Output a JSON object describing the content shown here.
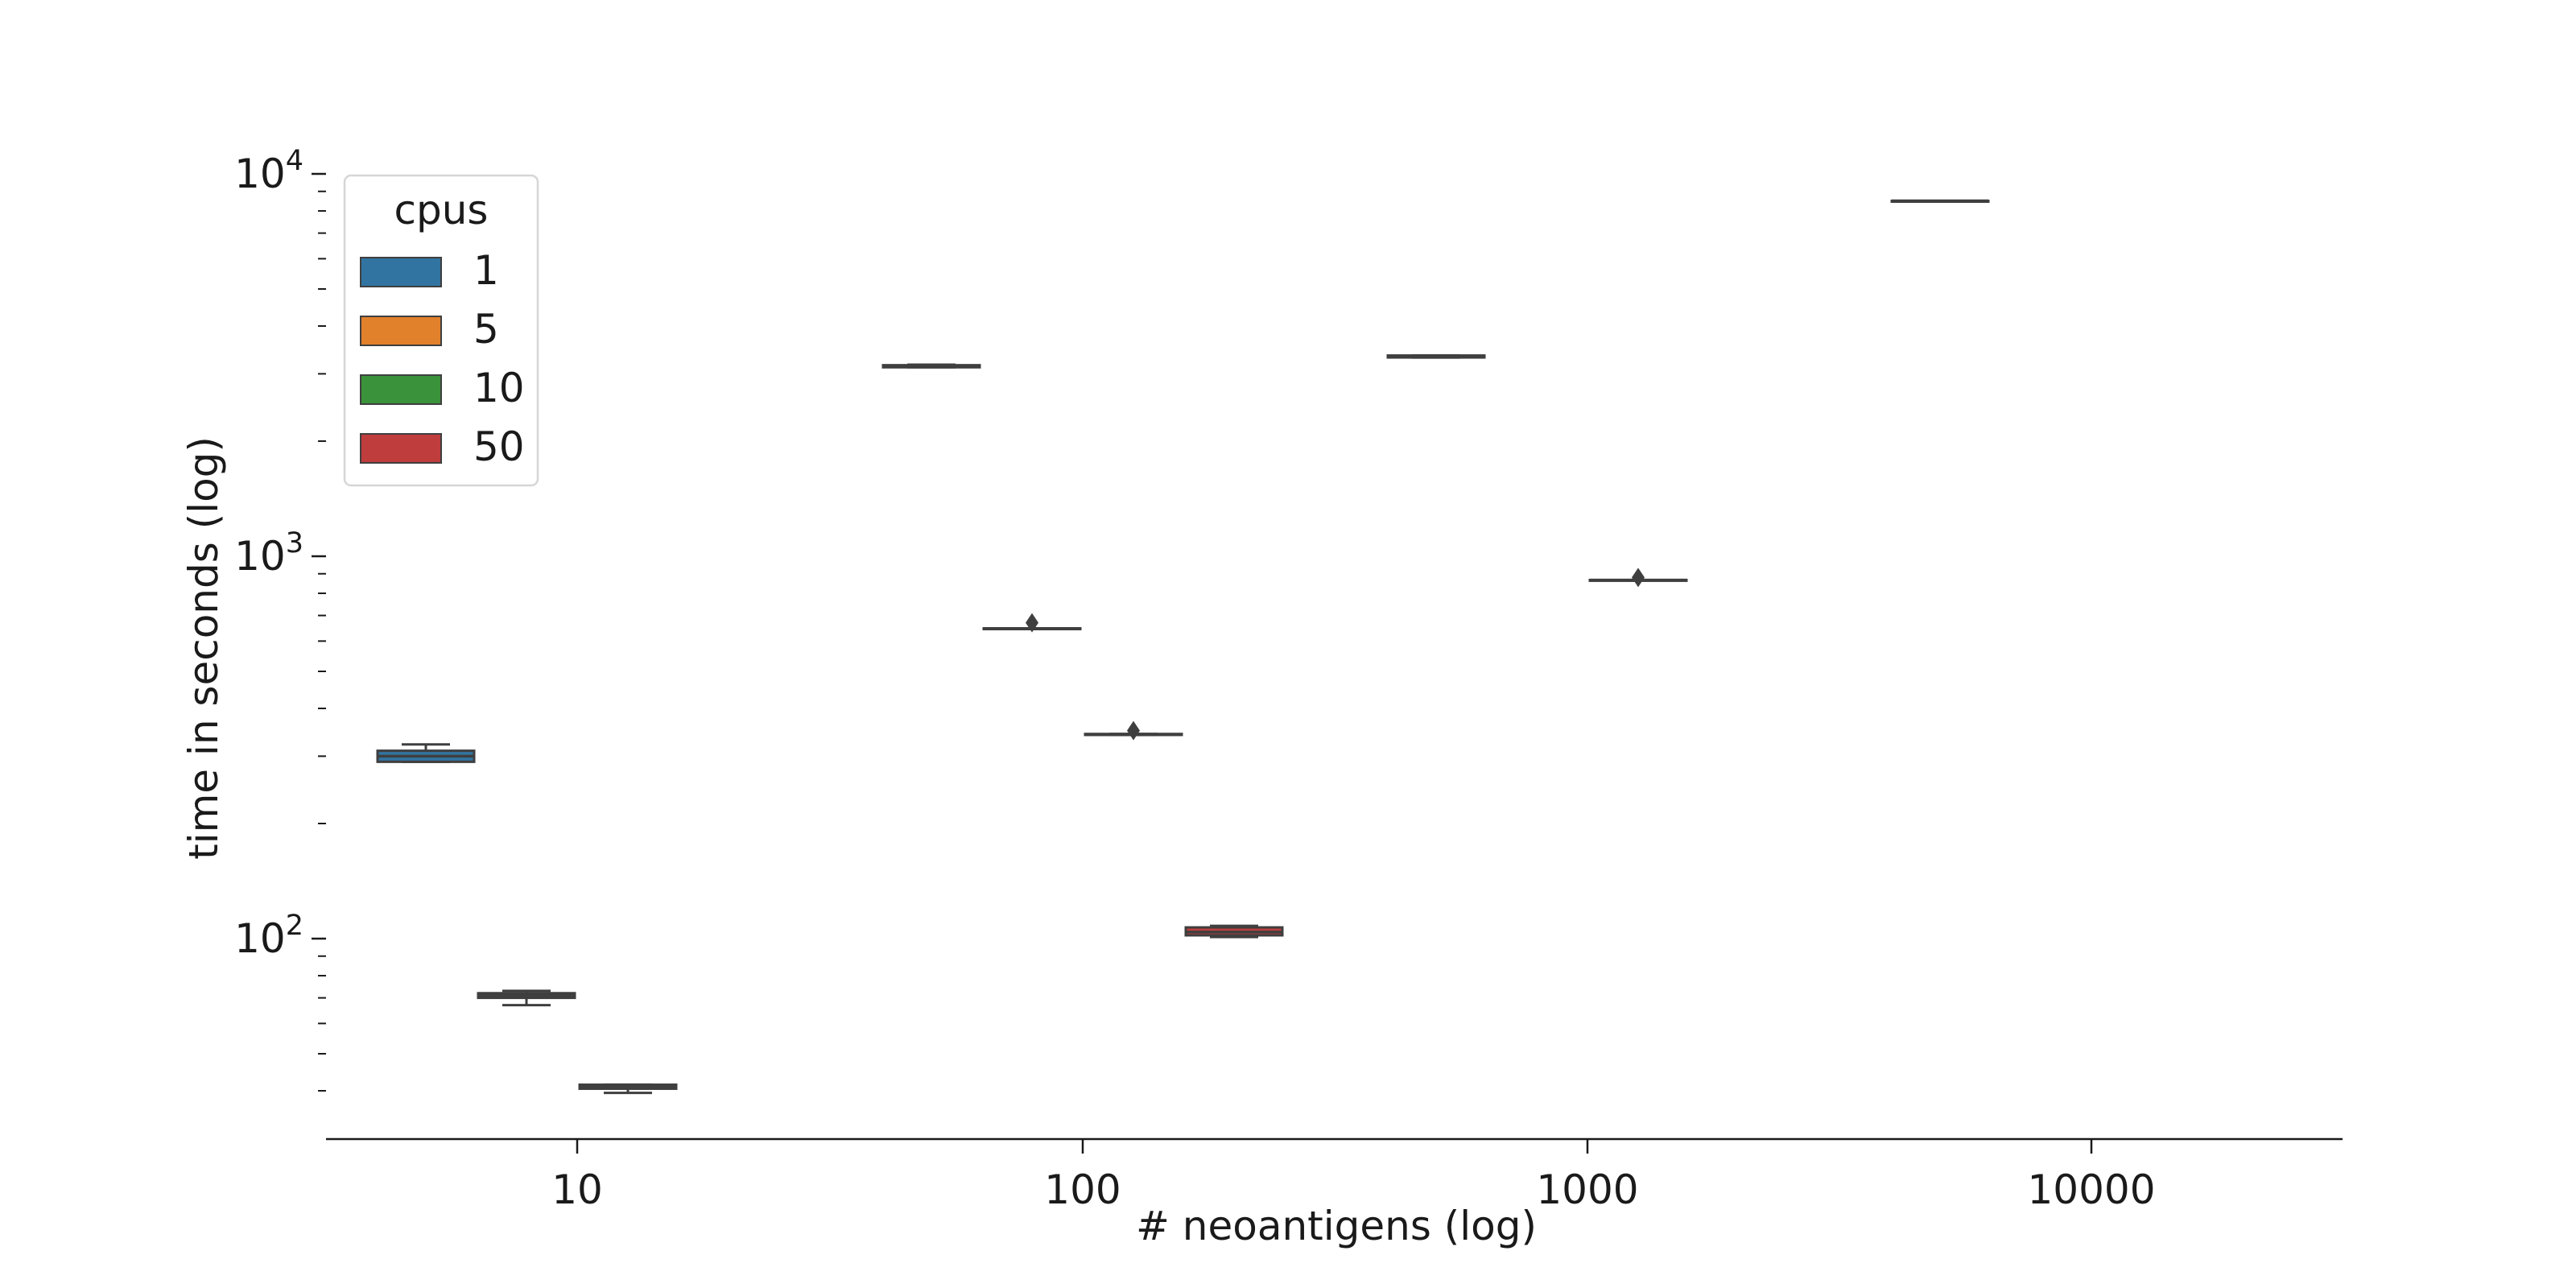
{
  "chart_data": {
    "type": "boxplot",
    "title": "",
    "xlabel": "# neoantigens (log)",
    "ylabel": "time in seconds (log)",
    "yscale": "log",
    "ylim": [
      33,
      11500
    ],
    "x_categories": [
      "10",
      "100",
      "1000",
      "10000"
    ],
    "y_ticks": [
      {
        "value": 100,
        "base": "10",
        "exp": "2"
      },
      {
        "value": 1000,
        "base": "10",
        "exp": "3"
      },
      {
        "value": 10000,
        "base": "10",
        "exp": "4"
      }
    ],
    "legend": {
      "title": "cpus",
      "placement": "upper-left",
      "entries": [
        {
          "label": "1",
          "color": "#3274a1"
        },
        {
          "label": "5",
          "color": "#e1812c"
        },
        {
          "label": "10",
          "color": "#3a923a"
        },
        {
          "label": "50",
          "color": "#c03d3e"
        }
      ]
    },
    "series": [
      {
        "name": "1",
        "color": "#3274a1",
        "values": [
          {
            "category": "10",
            "min": 290,
            "q1": 290,
            "median": 300,
            "q3": 310,
            "max": 322,
            "outliers": []
          },
          {
            "category": "100",
            "min": 3120,
            "q1": 3120,
            "median": 3140,
            "q3": 3160,
            "max": 3170,
            "outliers": []
          },
          {
            "category": "1000",
            "min": 3310,
            "q1": 3310,
            "median": 3330,
            "q3": 3350,
            "max": 3350,
            "outliers": []
          },
          {
            "category": "10000",
            "min": 8500,
            "q1": 8500,
            "median": 8500,
            "q3": 8500,
            "max": 8500,
            "outliers": []
          }
        ]
      },
      {
        "name": "5",
        "color": "#e1812c",
        "values": [
          {
            "category": "10",
            "min": 67,
            "q1": 70,
            "median": 71,
            "q3": 72,
            "max": 73,
            "outliers": []
          },
          {
            "category": "100",
            "min": 646,
            "q1": 646,
            "median": 647,
            "q3": 648,
            "max": 648,
            "outliers": [
              670
            ]
          }
        ]
      },
      {
        "name": "10",
        "color": "#3a923a",
        "values": [
          {
            "category": "10",
            "min": 39.5,
            "q1": 40.5,
            "median": 41,
            "q3": 41.5,
            "max": 41.5,
            "outliers": []
          },
          {
            "category": "100",
            "min": 341,
            "q1": 341,
            "median": 342,
            "q3": 343,
            "max": 343,
            "outliers": [
              350
            ]
          },
          {
            "category": "1000",
            "min": 865,
            "q1": 865,
            "median": 866,
            "q3": 867,
            "max": 867,
            "outliers": [
              880
            ]
          }
        ]
      },
      {
        "name": "50",
        "color": "#c03d3e",
        "values": [
          {
            "category": "100",
            "min": 101,
            "q1": 102,
            "median": 104,
            "q3": 107,
            "max": 108,
            "outliers": []
          }
        ]
      }
    ]
  }
}
